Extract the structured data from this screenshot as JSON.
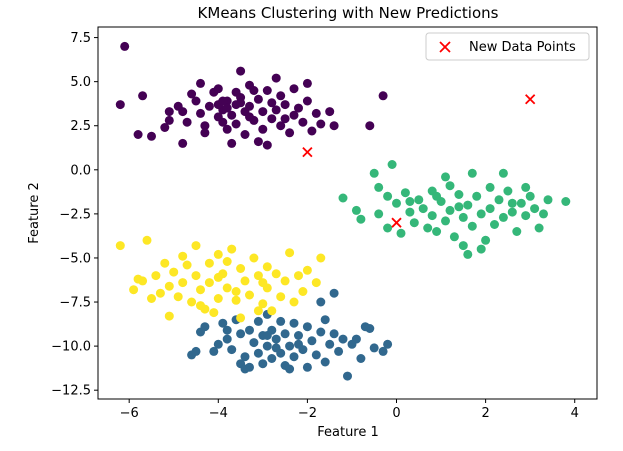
{
  "chart_data": {
    "type": "scatter",
    "title": "KMeans Clustering with New Predictions",
    "xlabel": "Feature 1",
    "ylabel": "Feature 2",
    "xlim": [
      -6.7,
      4.5
    ],
    "ylim": [
      -13.0,
      8.1
    ],
    "xticks": [
      -6,
      -4,
      -2,
      0,
      2,
      4
    ],
    "xtick_labels": [
      "−6",
      "−4",
      "−2",
      "0",
      "2",
      "4"
    ],
    "yticks": [
      7.5,
      5.0,
      2.5,
      0.0,
      -2.5,
      -5.0,
      -7.5,
      -10.0,
      -12.5
    ],
    "ytick_labels": [
      "7.5",
      "5.0",
      "2.5",
      "0.0",
      "−2.5",
      "−5.0",
      "−7.5",
      "−10.0",
      "−12.5"
    ],
    "grid": false,
    "legend_position": "top-right",
    "series": [
      {
        "cluster": 0,
        "color": "#440154",
        "points": [
          [
            -6.1,
            7.0
          ],
          [
            -6.2,
            3.7
          ],
          [
            -5.7,
            4.2
          ],
          [
            -5.8,
            2.0
          ],
          [
            -5.5,
            1.9
          ],
          [
            -5.2,
            2.4
          ],
          [
            -5.1,
            2.8
          ],
          [
            -5.1,
            3.3
          ],
          [
            -4.9,
            3.6
          ],
          [
            -4.8,
            3.3
          ],
          [
            -4.8,
            1.5
          ],
          [
            -4.6,
            4.3
          ],
          [
            -4.5,
            3.9
          ],
          [
            -4.4,
            3.2
          ],
          [
            -4.3,
            2.5
          ],
          [
            -4.3,
            2.1
          ],
          [
            -4.2,
            3.6
          ],
          [
            -4.1,
            4.4
          ],
          [
            -4.0,
            3.0
          ],
          [
            -4.0,
            4.6
          ],
          [
            -3.9,
            3.4
          ],
          [
            -3.9,
            2.7
          ],
          [
            -3.8,
            3.9
          ],
          [
            -3.8,
            2.3
          ],
          [
            -3.7,
            3.1
          ],
          [
            -3.7,
            1.5
          ],
          [
            -3.6,
            4.4
          ],
          [
            -3.6,
            3.7
          ],
          [
            -3.6,
            2.6
          ],
          [
            -3.5,
            5.6
          ],
          [
            -3.5,
            4.1
          ],
          [
            -3.4,
            3.3
          ],
          [
            -3.4,
            2.0
          ],
          [
            -3.3,
            4.8
          ],
          [
            -3.3,
            3.6
          ],
          [
            -3.2,
            2.8
          ],
          [
            -3.1,
            4.0
          ],
          [
            -3.1,
            1.6
          ],
          [
            -3.0,
            3.3
          ],
          [
            -3.0,
            2.3
          ],
          [
            -2.9,
            4.5
          ],
          [
            -2.9,
            1.4
          ],
          [
            -2.8,
            3.8
          ],
          [
            -2.8,
            2.9
          ],
          [
            -2.7,
            5.2
          ],
          [
            -2.7,
            3.4
          ],
          [
            -2.6,
            4.2
          ],
          [
            -2.6,
            2.5
          ],
          [
            -2.5,
            3.7
          ],
          [
            -2.4,
            2.1
          ],
          [
            -2.3,
            4.6
          ],
          [
            -2.3,
            3.1
          ],
          [
            -2.2,
            3.5
          ],
          [
            -2.1,
            2.7
          ],
          [
            -2.0,
            4.9
          ],
          [
            -2.0,
            3.9
          ],
          [
            -1.9,
            2.2
          ],
          [
            -1.8,
            3.2
          ],
          [
            -1.7,
            2.6
          ],
          [
            -1.5,
            3.3
          ],
          [
            -1.4,
            2.5
          ],
          [
            -0.6,
            2.5
          ],
          [
            -0.3,
            4.2
          ],
          [
            -4.7,
            2.7
          ],
          [
            -4.4,
            4.9
          ],
          [
            -3.2,
            4.5
          ],
          [
            -2.5,
            2.9
          ],
          [
            -4.0,
            3.7
          ],
          [
            -3.8,
            3.5
          ],
          [
            -3.5,
            3.8
          ],
          [
            -3.9,
            3.9
          ],
          [
            -3.3,
            3.0
          ]
        ]
      },
      {
        "cluster": 1,
        "color": "#31688e",
        "points": [
          [
            -4.6,
            -10.5
          ],
          [
            -4.5,
            -10.3
          ],
          [
            -4.4,
            -9.2
          ],
          [
            -4.3,
            -8.9
          ],
          [
            -4.1,
            -10.3
          ],
          [
            -4.0,
            -9.9
          ],
          [
            -3.9,
            -8.7
          ],
          [
            -3.8,
            -9.6
          ],
          [
            -3.7,
            -10.2
          ],
          [
            -3.6,
            -8.5
          ],
          [
            -3.5,
            -9.3
          ],
          [
            -3.5,
            -11.0
          ],
          [
            -3.4,
            -10.6
          ],
          [
            -3.3,
            -9.1
          ],
          [
            -3.3,
            -11.2
          ],
          [
            -3.2,
            -9.8
          ],
          [
            -3.1,
            -8.6
          ],
          [
            -3.1,
            -10.4
          ],
          [
            -3.0,
            -9.4
          ],
          [
            -3.0,
            -11.0
          ],
          [
            -2.9,
            -10.0
          ],
          [
            -2.9,
            -8.2
          ],
          [
            -2.8,
            -9.1
          ],
          [
            -2.8,
            -10.7
          ],
          [
            -2.7,
            -9.6
          ],
          [
            -2.6,
            -8.6
          ],
          [
            -2.6,
            -10.4
          ],
          [
            -2.5,
            -11.1
          ],
          [
            -2.5,
            -9.3
          ],
          [
            -2.4,
            -10.0
          ],
          [
            -2.3,
            -8.7
          ],
          [
            -2.3,
            -10.6
          ],
          [
            -2.2,
            -9.4
          ],
          [
            -2.1,
            -10.2
          ],
          [
            -2.0,
            -8.9
          ],
          [
            -2.0,
            -11.2
          ],
          [
            -1.9,
            -9.7
          ],
          [
            -1.8,
            -10.5
          ],
          [
            -1.7,
            -9.2
          ],
          [
            -1.6,
            -8.5
          ],
          [
            -1.6,
            -10.9
          ],
          [
            -1.5,
            -9.9
          ],
          [
            -1.4,
            -9.3
          ],
          [
            -1.3,
            -10.3
          ],
          [
            -1.2,
            -9.6
          ],
          [
            -1.1,
            -11.7
          ],
          [
            -1.0,
            -9.9
          ],
          [
            -0.9,
            -9.6
          ],
          [
            -0.8,
            -10.7
          ],
          [
            -0.7,
            -8.9
          ],
          [
            -0.6,
            -9.0
          ],
          [
            -0.5,
            -10.1
          ],
          [
            -0.3,
            -10.3
          ],
          [
            -0.2,
            -9.9
          ],
          [
            -1.4,
            -7.0
          ],
          [
            -1.7,
            -7.5
          ],
          [
            -2.4,
            -11.3
          ],
          [
            -3.4,
            -11.3
          ],
          [
            -3.8,
            -9.1
          ],
          [
            -2.7,
            -10.1
          ],
          [
            -2.9,
            -9.4
          ],
          [
            -2.2,
            -9.9
          ]
        ]
      },
      {
        "cluster": 2,
        "color": "#35b779",
        "points": [
          [
            -1.2,
            -1.6
          ],
          [
            -0.9,
            -2.3
          ],
          [
            -0.8,
            -2.8
          ],
          [
            -0.5,
            -0.2
          ],
          [
            -0.4,
            -1.0
          ],
          [
            -0.4,
            -2.5
          ],
          [
            -0.2,
            -1.5
          ],
          [
            -0.2,
            -3.3
          ],
          [
            -0.1,
            0.3
          ],
          [
            0.0,
            -1.9
          ],
          [
            0.1,
            -3.6
          ],
          [
            0.2,
            -1.3
          ],
          [
            0.3,
            -2.4
          ],
          [
            0.4,
            -3.0
          ],
          [
            0.5,
            -1.7
          ],
          [
            0.6,
            -2.2
          ],
          [
            0.7,
            -3.3
          ],
          [
            0.8,
            -1.2
          ],
          [
            0.8,
            -2.6
          ],
          [
            0.9,
            -3.5
          ],
          [
            1.0,
            -1.8
          ],
          [
            1.1,
            -2.9
          ],
          [
            1.2,
            -0.9
          ],
          [
            1.2,
            -2.3
          ],
          [
            1.3,
            -3.8
          ],
          [
            1.4,
            -1.4
          ],
          [
            1.5,
            -2.7
          ],
          [
            1.5,
            -4.3
          ],
          [
            1.6,
            -2.0
          ],
          [
            1.7,
            -0.2
          ],
          [
            1.7,
            -3.2
          ],
          [
            1.8,
            -1.5
          ],
          [
            1.9,
            -2.5
          ],
          [
            2.0,
            -4.0
          ],
          [
            2.1,
            -1.0
          ],
          [
            2.1,
            -2.2
          ],
          [
            2.2,
            -3.1
          ],
          [
            2.3,
            -1.7
          ],
          [
            2.4,
            -0.2
          ],
          [
            2.4,
            -2.7
          ],
          [
            2.5,
            -1.2
          ],
          [
            2.6,
            -2.4
          ],
          [
            2.7,
            -3.5
          ],
          [
            2.8,
            -1.9
          ],
          [
            2.9,
            -1.0
          ],
          [
            2.9,
            -2.6
          ],
          [
            3.0,
            -1.5
          ],
          [
            3.1,
            -2.2
          ],
          [
            3.2,
            -3.3
          ],
          [
            3.3,
            -2.5
          ],
          [
            3.4,
            -1.7
          ],
          [
            3.8,
            -1.8
          ],
          [
            1.9,
            -4.5
          ],
          [
            1.6,
            -4.8
          ],
          [
            0.3,
            -1.8
          ],
          [
            0.9,
            -1.5
          ],
          [
            1.4,
            -2.1
          ],
          [
            2.6,
            -1.9
          ],
          [
            1.1,
            -0.4
          ]
        ]
      },
      {
        "cluster": 3,
        "color": "#fde725",
        "points": [
          [
            -6.2,
            -4.3
          ],
          [
            -5.9,
            -6.8
          ],
          [
            -5.7,
            -6.3
          ],
          [
            -5.6,
            -4.0
          ],
          [
            -5.5,
            -7.3
          ],
          [
            -5.4,
            -6.0
          ],
          [
            -5.3,
            -7.0
          ],
          [
            -5.2,
            -5.3
          ],
          [
            -5.1,
            -6.6
          ],
          [
            -5.1,
            -8.3
          ],
          [
            -5.0,
            -5.8
          ],
          [
            -4.9,
            -7.2
          ],
          [
            -4.8,
            -4.9
          ],
          [
            -4.8,
            -6.4
          ],
          [
            -4.7,
            -5.4
          ],
          [
            -4.6,
            -7.5
          ],
          [
            -4.5,
            -6.0
          ],
          [
            -4.5,
            -4.3
          ],
          [
            -4.4,
            -6.8
          ],
          [
            -4.3,
            -7.9
          ],
          [
            -4.2,
            -5.3
          ],
          [
            -4.2,
            -6.4
          ],
          [
            -4.1,
            -8.1
          ],
          [
            -4.0,
            -4.8
          ],
          [
            -4.0,
            -7.3
          ],
          [
            -3.9,
            -5.9
          ],
          [
            -3.8,
            -6.7
          ],
          [
            -3.7,
            -4.5
          ],
          [
            -3.6,
            -7.4
          ],
          [
            -3.5,
            -5.6
          ],
          [
            -3.5,
            -8.4
          ],
          [
            -3.4,
            -6.3
          ],
          [
            -3.3,
            -7.1
          ],
          [
            -3.2,
            -5.0
          ],
          [
            -3.1,
            -6.0
          ],
          [
            -3.0,
            -7.6
          ],
          [
            -2.9,
            -5.5
          ],
          [
            -2.9,
            -6.7
          ],
          [
            -2.8,
            -8.0
          ],
          [
            -2.7,
            -5.9
          ],
          [
            -2.6,
            -7.2
          ],
          [
            -2.5,
            -6.3
          ],
          [
            -2.4,
            -4.7
          ],
          [
            -2.3,
            -7.5
          ],
          [
            -2.2,
            -6.0
          ],
          [
            -2.1,
            -6.9
          ],
          [
            -2.0,
            -5.7
          ],
          [
            -1.8,
            -6.4
          ],
          [
            -1.7,
            -5.0
          ],
          [
            -3.1,
            -8.0
          ],
          [
            -4.4,
            -7.7
          ],
          [
            -4.0,
            -6.1
          ],
          [
            -3.8,
            -5.2
          ],
          [
            -3.0,
            -6.4
          ],
          [
            -3.6,
            -6.9
          ],
          [
            -5.8,
            -6.2
          ]
        ]
      }
    ],
    "new_points": {
      "name": "New Data Points",
      "color": "#ff0000",
      "marker": "x",
      "points": [
        [
          -2.0,
          1.0
        ],
        [
          0.0,
          -3.0
        ],
        [
          3.0,
          4.0
        ]
      ]
    }
  }
}
